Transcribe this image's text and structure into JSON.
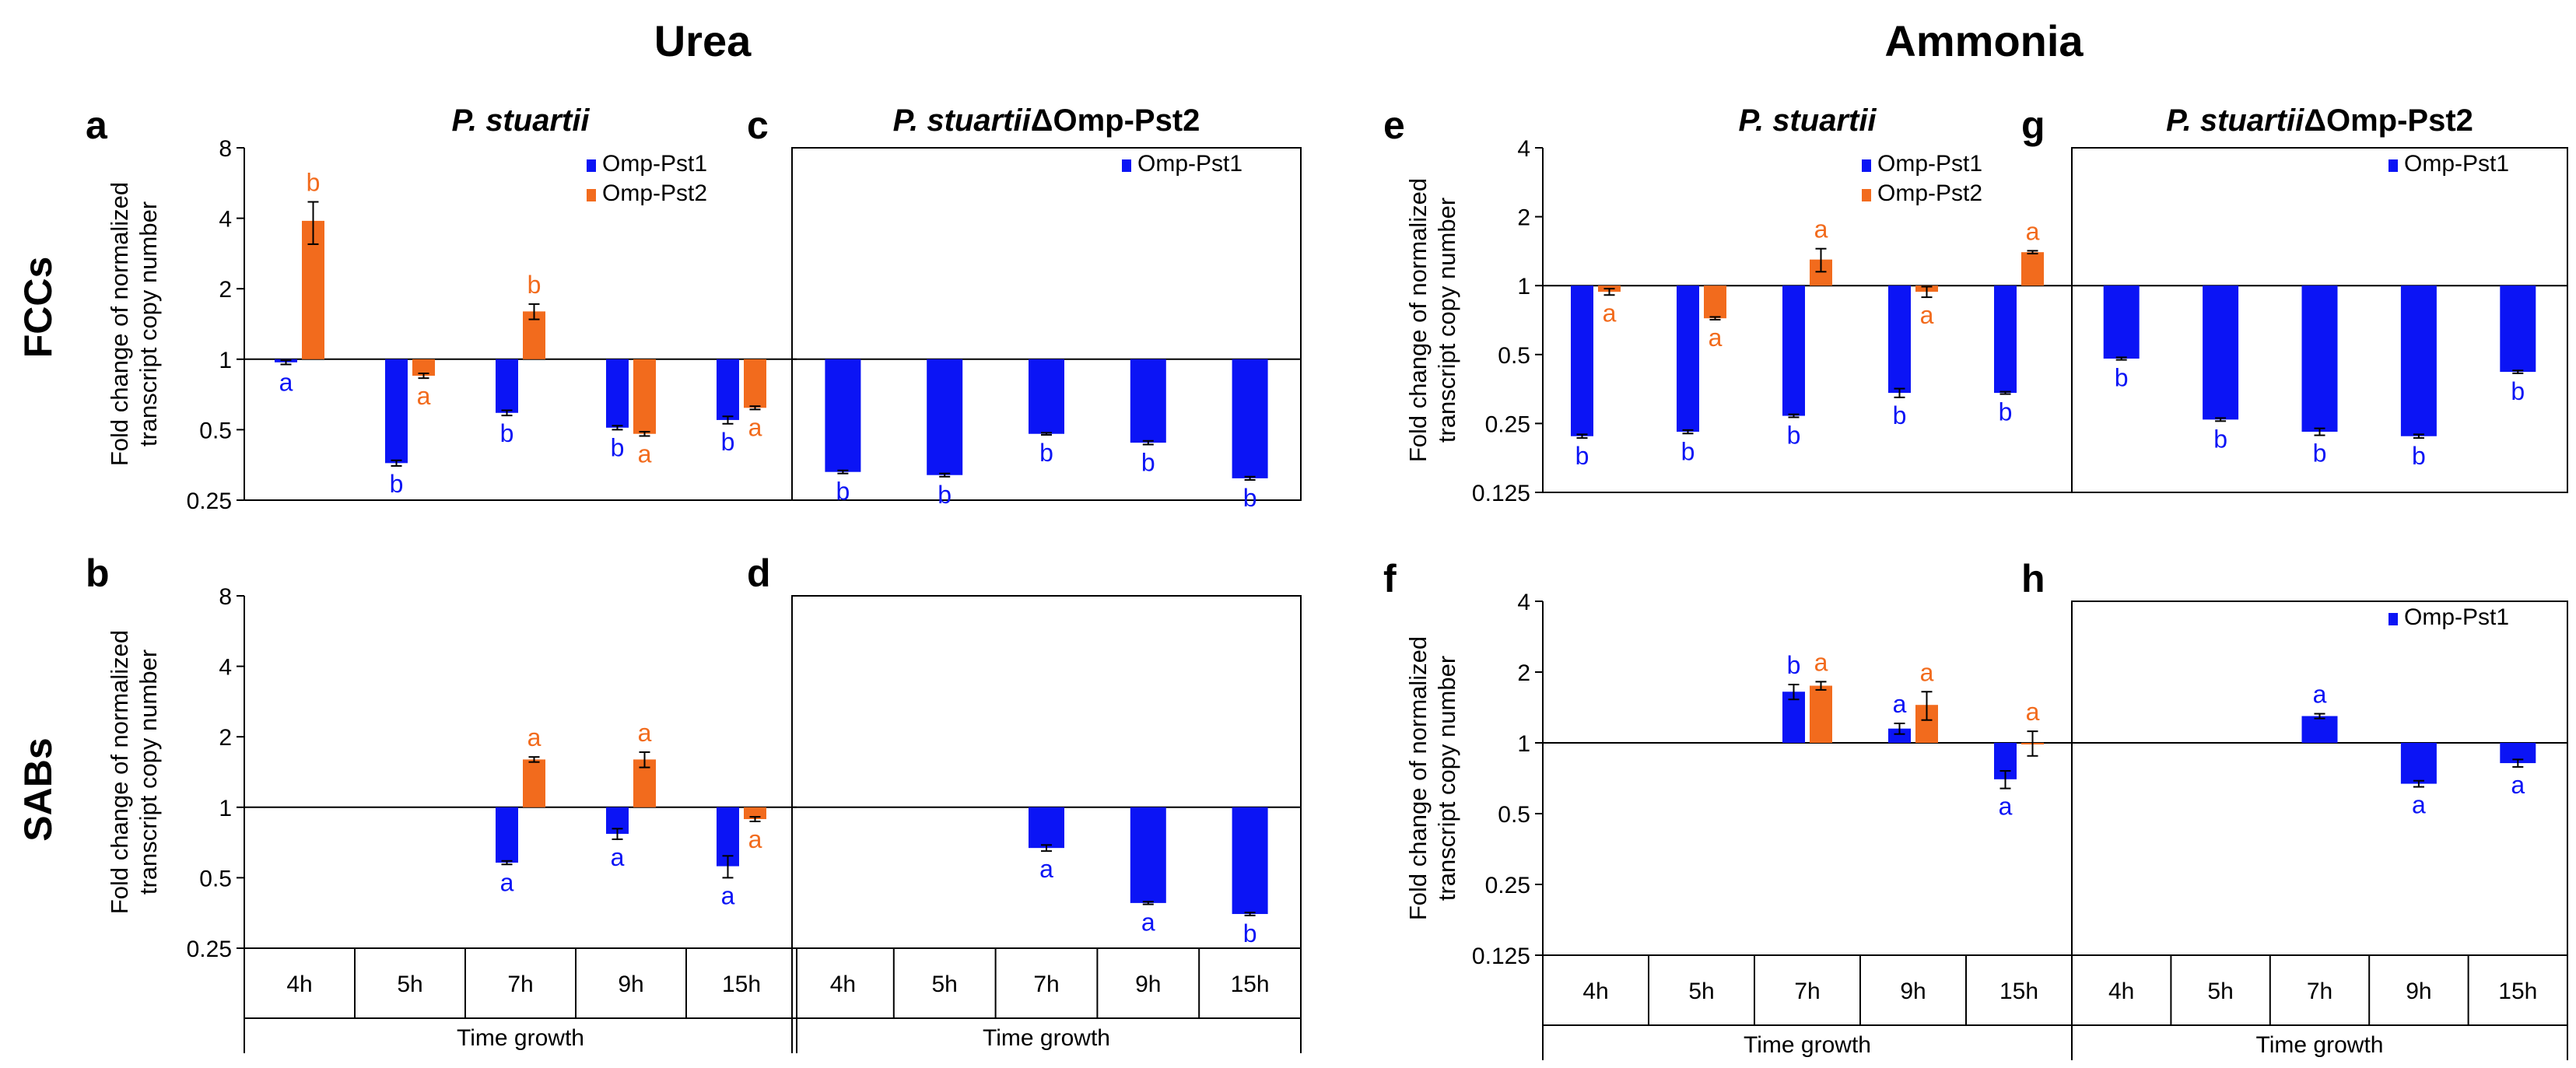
{
  "figure": {
    "headers": {
      "urea": "Urea",
      "ammonia": "Ammonia"
    },
    "row_labels": {
      "fccs": "FCCs",
      "sabs": "SABs"
    },
    "ylabel_line1": "Fold change of normalized",
    "ylabel_line2": "transcript copy number",
    "xlabel": "Time growth",
    "categories": [
      "4h",
      "5h",
      "7h",
      "9h",
      "15h"
    ],
    "colors": {
      "omp_pst1": "#0b14f5",
      "omp_pst2": "#f26b1d",
      "axis": "#000000"
    }
  },
  "chart_data": [
    {
      "panel": "a",
      "type": "bar",
      "yscale": "log2",
      "title_italic": "P. stuartii",
      "title_suffix": "",
      "row": "FCCs",
      "group": "Urea",
      "ylim": [
        0.25,
        8
      ],
      "yticks": [
        "0.25",
        "0.5",
        "1",
        "2",
        "4",
        "8"
      ],
      "categories": [
        "4h",
        "5h",
        "7h",
        "9h",
        "15h"
      ],
      "legend": [
        "Omp-Pst1",
        "Omp-Pst2"
      ],
      "series": [
        {
          "name": "Omp-Pst1",
          "color": "#0b14f5",
          "values": [
            0.97,
            0.36,
            0.59,
            0.51,
            0.55
          ],
          "errors": [
            0.02,
            0.01,
            0.015,
            0.01,
            0.02
          ],
          "letters": [
            "a",
            "b",
            "b",
            "b",
            "b"
          ]
        },
        {
          "name": "Omp-Pst2",
          "color": "#f26b1d",
          "values": [
            3.9,
            0.85,
            1.6,
            0.48,
            0.62
          ],
          "errors": [
            0.8,
            0.02,
            0.12,
            0.01,
            0.01
          ],
          "letters": [
            "b",
            "a",
            "b",
            "a",
            "a"
          ]
        }
      ]
    },
    {
      "panel": "c",
      "type": "bar",
      "yscale": "log2",
      "title_italic": "P. stuartii",
      "title_suffix": "ΔOmp-Pst2",
      "row": "FCCs",
      "group": "Urea",
      "ylim": [
        0.25,
        8
      ],
      "yticks": [],
      "categories": [
        "4h",
        "5h",
        "7h",
        "9h",
        "15h"
      ],
      "legend": [
        "Omp-Pst1"
      ],
      "series": [
        {
          "name": "Omp-Pst1",
          "color": "#0b14f5",
          "values": [
            0.33,
            0.32,
            0.48,
            0.44,
            0.31
          ],
          "errors": [
            0.005,
            0.005,
            0.005,
            0.008,
            0.005
          ],
          "letters": [
            "b",
            "b",
            "b",
            "b",
            "b"
          ]
        }
      ]
    },
    {
      "panel": "e",
      "type": "bar",
      "yscale": "log2",
      "title_italic": "P. stuartii",
      "title_suffix": "",
      "row": "FCCs",
      "group": "Ammonia",
      "ylim": [
        0.125,
        4
      ],
      "yticks": [
        "0.125",
        "0.25",
        "0.5",
        "1",
        "2",
        "4"
      ],
      "categories": [
        "4h",
        "5h",
        "7h",
        "9h",
        "15h"
      ],
      "legend": [
        "Omp-Pst1",
        "Omp-Pst2"
      ],
      "series": [
        {
          "name": "Omp-Pst1",
          "color": "#0b14f5",
          "values": [
            0.22,
            0.23,
            0.27,
            0.34,
            0.34
          ],
          "errors": [
            0.004,
            0.004,
            0.004,
            0.015,
            0.004
          ],
          "letters": [
            "b",
            "b",
            "b",
            "b",
            "b"
          ]
        },
        {
          "name": "Omp-Pst2",
          "color": "#f26b1d",
          "values": [
            0.94,
            0.72,
            1.3,
            0.94,
            1.4
          ],
          "errors": [
            0.03,
            0.01,
            0.15,
            0.05,
            0.02
          ],
          "letters": [
            "a",
            "a",
            "a",
            "a",
            "a"
          ]
        }
      ]
    },
    {
      "panel": "g",
      "type": "bar",
      "yscale": "log2",
      "title_italic": "P. stuartii",
      "title_suffix": "ΔOmp-Pst2",
      "row": "FCCs",
      "group": "Ammonia",
      "ylim": [
        0.125,
        4
      ],
      "yticks": [],
      "categories": [
        "4h",
        "5h",
        "7h",
        "9h",
        "15h"
      ],
      "legend": [
        "Omp-Pst1"
      ],
      "series": [
        {
          "name": "Omp-Pst1",
          "color": "#0b14f5",
          "values": [
            0.48,
            0.26,
            0.23,
            0.22,
            0.42
          ],
          "errors": [
            0.006,
            0.004,
            0.008,
            0.004,
            0.006
          ],
          "letters": [
            "b",
            "b",
            "b",
            "b",
            "b"
          ]
        }
      ]
    },
    {
      "panel": "b",
      "type": "bar",
      "yscale": "log2",
      "title_italic": "",
      "title_suffix": "",
      "row": "SABs",
      "group": "Urea",
      "ylim": [
        0.25,
        8
      ],
      "yticks": [
        "0.25",
        "0.5",
        "1",
        "2",
        "4",
        "8"
      ],
      "categories": [
        "4h",
        "5h",
        "7h",
        "9h",
        "15h"
      ],
      "legend": [],
      "series": [
        {
          "name": "Omp-Pst1",
          "color": "#0b14f5",
          "values": [
            null,
            null,
            0.58,
            0.77,
            0.56
          ],
          "errors": [
            0,
            0,
            0.01,
            0.04,
            0.06
          ],
          "letters": [
            "",
            "",
            "a",
            "a",
            "a"
          ]
        },
        {
          "name": "Omp-Pst2",
          "color": "#f26b1d",
          "values": [
            null,
            null,
            1.6,
            1.6,
            0.89
          ],
          "errors": [
            0,
            0,
            0.04,
            0.12,
            0.02
          ],
          "letters": [
            "",
            "",
            "a",
            "a",
            "a"
          ]
        }
      ]
    },
    {
      "panel": "d",
      "type": "bar",
      "yscale": "log2",
      "title_italic": "",
      "title_suffix": "",
      "row": "SABs",
      "group": "Urea",
      "ylim": [
        0.25,
        8
      ],
      "yticks": [],
      "categories": [
        "4h",
        "5h",
        "7h",
        "9h",
        "15h"
      ],
      "legend": [],
      "series": [
        {
          "name": "Omp-Pst1",
          "color": "#0b14f5",
          "values": [
            null,
            null,
            0.67,
            0.39,
            0.35
          ],
          "errors": [
            0,
            0,
            0.02,
            0.005,
            0.005
          ],
          "letters": [
            "",
            "",
            "a",
            "a",
            "b"
          ]
        }
      ]
    },
    {
      "panel": "f",
      "type": "bar",
      "yscale": "log2",
      "title_italic": "",
      "title_suffix": "",
      "row": "SABs",
      "group": "Ammonia",
      "ylim": [
        0.125,
        4
      ],
      "yticks": [
        "0.125",
        "0.25",
        "0.5",
        "1",
        "2",
        "4"
      ],
      "categories": [
        "4h",
        "5h",
        "7h",
        "9h",
        "15h"
      ],
      "legend": [],
      "series": [
        {
          "name": "Omp-Pst1",
          "color": "#0b14f5",
          "values": [
            null,
            null,
            1.65,
            1.15,
            0.7
          ],
          "errors": [
            0,
            0,
            0.12,
            0.06,
            0.06
          ],
          "letters": [
            "",
            "",
            "b",
            "a",
            "a"
          ]
        },
        {
          "name": "Omp-Pst2",
          "color": "#f26b1d",
          "values": [
            null,
            null,
            1.75,
            1.45,
            1.0
          ],
          "errors": [
            0,
            0,
            0.07,
            0.2,
            0.12
          ],
          "letters": [
            "",
            "",
            "a",
            "a",
            "a"
          ]
        }
      ]
    },
    {
      "panel": "h",
      "type": "bar",
      "yscale": "log2",
      "title_italic": "",
      "title_suffix": "",
      "row": "SABs",
      "group": "Ammonia",
      "ylim": [
        0.125,
        4
      ],
      "yticks": [],
      "categories": [
        "4h",
        "5h",
        "7h",
        "9h",
        "15h"
      ],
      "legend": [
        "Omp-Pst1"
      ],
      "series": [
        {
          "name": "Omp-Pst1",
          "color": "#0b14f5",
          "values": [
            null,
            null,
            1.3,
            0.67,
            0.82
          ],
          "errors": [
            0,
            0,
            0.03,
            0.02,
            0.03
          ],
          "letters": [
            "",
            "",
            "a",
            "a",
            "a"
          ]
        }
      ]
    }
  ]
}
